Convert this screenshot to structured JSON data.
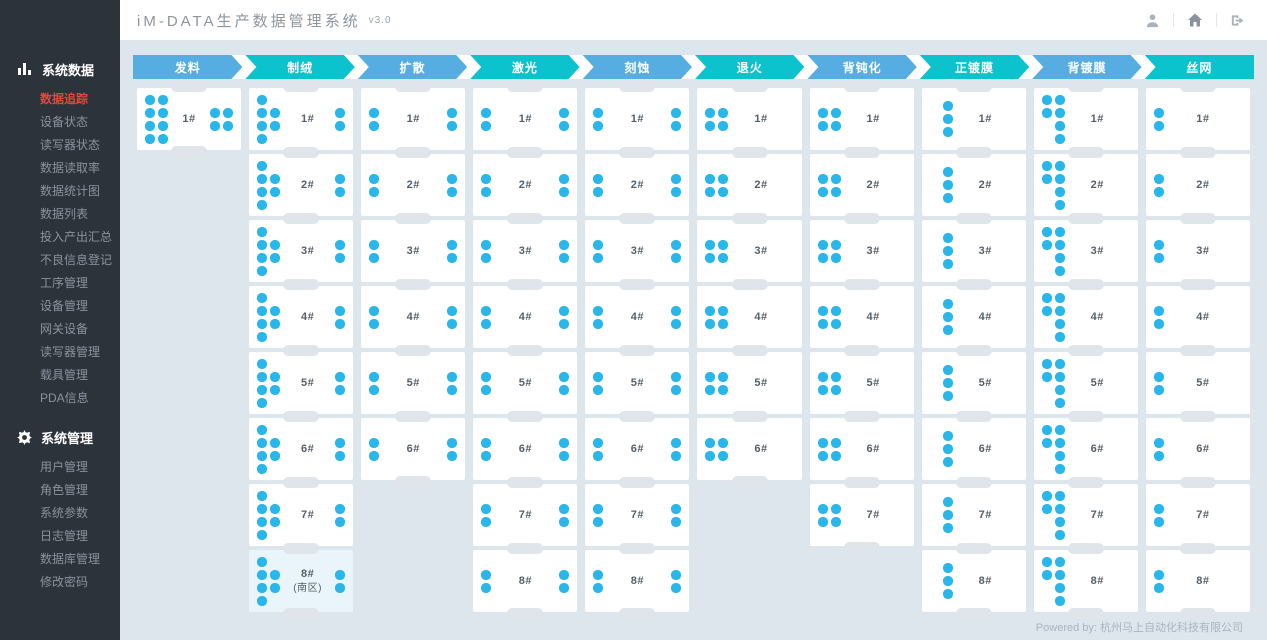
{
  "app": {
    "title": "iM-DATA生产数据管理系统",
    "version": "v3.0"
  },
  "topbar": {
    "icons": [
      "user-icon",
      "home-icon",
      "logout-icon"
    ]
  },
  "sidebar": {
    "sections": [
      {
        "label": "系统数据",
        "icon": "bar-chart-icon",
        "items": [
          {
            "label": "数据追踪",
            "active": true
          },
          {
            "label": "设备状态"
          },
          {
            "label": "读写器状态"
          },
          {
            "label": "数据读取率"
          },
          {
            "label": "数据统计图"
          },
          {
            "label": "数据列表"
          },
          {
            "label": "投入产出汇总"
          },
          {
            "label": "不良信息登记"
          },
          {
            "label": "工序管理"
          },
          {
            "label": "设备管理"
          },
          {
            "label": "网关设备"
          },
          {
            "label": "读写器管理"
          },
          {
            "label": "载具管理"
          },
          {
            "label": "PDA信息"
          }
        ]
      },
      {
        "label": "系统管理",
        "icon": "gear-icon",
        "items": [
          {
            "label": "用户管理"
          },
          {
            "label": "角色管理"
          },
          {
            "label": "系统参数"
          },
          {
            "label": "日志管理"
          },
          {
            "label": "数据库管理"
          },
          {
            "label": "修改密码"
          }
        ]
      }
    ]
  },
  "process_columns": [
    {
      "name": "发料",
      "theme": "blue",
      "dot_pattern": {
        "left": [
          "11",
          "11",
          "11",
          "11"
        ],
        "right": [
          "11",
          "11"
        ]
      },
      "cards": [
        {
          "label": "1#"
        }
      ]
    },
    {
      "name": "制绒",
      "theme": "teal",
      "dot_pattern": {
        "left": [
          "10",
          "11",
          "11",
          "10"
        ],
        "right": [
          "1",
          "1"
        ]
      },
      "cards": [
        {
          "label": "1#"
        },
        {
          "label": "2#"
        },
        {
          "label": "3#"
        },
        {
          "label": "4#"
        },
        {
          "label": "5#"
        },
        {
          "label": "6#"
        },
        {
          "label": "7#"
        },
        {
          "label": "8#",
          "sub": "(南区)",
          "highlighted": true
        }
      ]
    },
    {
      "name": "扩散",
      "theme": "blue",
      "dot_pattern": {
        "left": [
          "1",
          "1"
        ],
        "right": [
          "1",
          "1"
        ]
      },
      "cards": [
        {
          "label": "1#"
        },
        {
          "label": "2#"
        },
        {
          "label": "3#"
        },
        {
          "label": "4#"
        },
        {
          "label": "5#"
        },
        {
          "label": "6#"
        }
      ]
    },
    {
      "name": "激光",
      "theme": "teal",
      "dot_pattern": {
        "left": [
          "1",
          "1"
        ],
        "right": [
          "1",
          "1"
        ]
      },
      "cards": [
        {
          "label": "1#"
        },
        {
          "label": "2#"
        },
        {
          "label": "3#"
        },
        {
          "label": "4#"
        },
        {
          "label": "5#"
        },
        {
          "label": "6#"
        },
        {
          "label": "7#"
        },
        {
          "label": "8#"
        }
      ]
    },
    {
      "name": "刻蚀",
      "theme": "blue",
      "dot_pattern": {
        "left": [
          "1",
          "1"
        ],
        "right": [
          "1",
          "1"
        ]
      },
      "cards": [
        {
          "label": "1#"
        },
        {
          "label": "2#"
        },
        {
          "label": "3#"
        },
        {
          "label": "4#"
        },
        {
          "label": "5#"
        },
        {
          "label": "6#"
        },
        {
          "label": "7#"
        },
        {
          "label": "8#"
        }
      ]
    },
    {
      "name": "退火",
      "theme": "teal",
      "dot_pattern": {
        "left": [
          "11",
          "11"
        ],
        "right": []
      },
      "cards": [
        {
          "label": "1#"
        },
        {
          "label": "2#"
        },
        {
          "label": "3#"
        },
        {
          "label": "4#"
        },
        {
          "label": "5#"
        },
        {
          "label": "6#"
        }
      ]
    },
    {
      "name": "背钝化",
      "theme": "blue",
      "dot_pattern": {
        "left": [
          "11",
          "11"
        ],
        "right": []
      },
      "cards": [
        {
          "label": "1#"
        },
        {
          "label": "2#"
        },
        {
          "label": "3#"
        },
        {
          "label": "4#"
        },
        {
          "label": "5#"
        },
        {
          "label": "6#"
        },
        {
          "label": "7#"
        }
      ]
    },
    {
      "name": "正镀膜",
      "theme": "teal",
      "dot_pattern": {
        "left": [
          "1",
          "1",
          "1"
        ],
        "right": []
      },
      "cards": [
        {
          "label": "1#"
        },
        {
          "label": "2#"
        },
        {
          "label": "3#"
        },
        {
          "label": "4#"
        },
        {
          "label": "5#"
        },
        {
          "label": "6#"
        },
        {
          "label": "7#"
        },
        {
          "label": "8#"
        }
      ]
    },
    {
      "name": "背镀膜",
      "theme": "blue",
      "dot_pattern": {
        "left": [
          "11",
          "11",
          "01",
          "01"
        ],
        "right": []
      },
      "cards": [
        {
          "label": "1#"
        },
        {
          "label": "2#"
        },
        {
          "label": "3#"
        },
        {
          "label": "4#"
        },
        {
          "label": "5#"
        },
        {
          "label": "6#"
        },
        {
          "label": "7#"
        },
        {
          "label": "8#"
        }
      ]
    },
    {
      "name": "丝网",
      "theme": "teal",
      "dot_pattern": {
        "left": [
          "1",
          "1"
        ],
        "right": []
      },
      "cards": [
        {
          "label": "1#"
        },
        {
          "label": "2#"
        },
        {
          "label": "3#"
        },
        {
          "label": "4#"
        },
        {
          "label": "5#"
        },
        {
          "label": "6#"
        },
        {
          "label": "7#"
        },
        {
          "label": "8#"
        }
      ]
    }
  ],
  "footer": {
    "text": "Powered by: 杭州马上自动化科技有限公司"
  },
  "colors": {
    "stage_blue": "#56ade1",
    "stage_teal": "#0cc2cd",
    "dot": "#29b6ea",
    "active_item": "#dd4b39",
    "sidebar_bg": "#2c333b",
    "content_bg": "#dde5ed",
    "highlight_card_bg": "#e9f5fa"
  }
}
